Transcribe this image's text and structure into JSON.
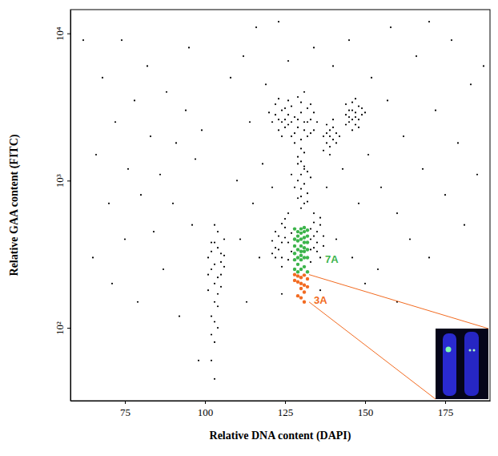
{
  "chart_data": {
    "type": "scatter",
    "x_label": "Relative DNA content (DAPI)",
    "y_label": "Relative GAA content (FITC)",
    "xlim": [
      58,
      189
    ],
    "xticks": [
      75,
      100,
      125,
      150,
      175
    ],
    "ylim": [
      32,
      14500
    ],
    "yticks": [
      {
        "value": 100,
        "label": "10²"
      },
      {
        "value": 1000,
        "label": "10³"
      },
      {
        "value": 10000,
        "label": "10⁴"
      }
    ],
    "log": "y",
    "grid": false,
    "series": [
      {
        "color": "#000000",
        "marker": "dot",
        "x": [
          62,
          65,
          66,
          68,
          70,
          71,
          72,
          74,
          75,
          76,
          78,
          79,
          80,
          82,
          83,
          84,
          86,
          87,
          88,
          90,
          91,
          92,
          94,
          95,
          96,
          97,
          98,
          99,
          108,
          110,
          111,
          112,
          113,
          114,
          115,
          116,
          117,
          118,
          119,
          121,
          123,
          124,
          126,
          127,
          134,
          136,
          138,
          140,
          141,
          143,
          145,
          146,
          148,
          151,
          152,
          154,
          155,
          157,
          158,
          160,
          162,
          164,
          166,
          168,
          170,
          172,
          175,
          177,
          179,
          181,
          183,
          185,
          187,
          150,
          160,
          170,
          101,
          102,
          103,
          104,
          105,
          106,
          103,
          102,
          104,
          103,
          102,
          103,
          104,
          105,
          101,
          106,
          103,
          104,
          102,
          105,
          103,
          104,
          102,
          106,
          101,
          103,
          105,
          102,
          104,
          103,
          122,
          123,
          124,
          125,
          126,
          127,
          125,
          124,
          122,
          121,
          126,
          133,
          134,
          135,
          136,
          134,
          133,
          135,
          137,
          136,
          134,
          133,
          122,
          124,
          127,
          126,
          123,
          135,
          136,
          121,
          137,
          134,
          125,
          133,
          124,
          130,
          131,
          129,
          132,
          130,
          131,
          129,
          130,
          132,
          131,
          130,
          129,
          131,
          130,
          132,
          128,
          133,
          130,
          131,
          129,
          121,
          122,
          123,
          124,
          125,
          126,
          127,
          128,
          129,
          130,
          131,
          132,
          133,
          134,
          122,
          124,
          126,
          128,
          130,
          132,
          134,
          123,
          125,
          127,
          129,
          131,
          133,
          120,
          135,
          128,
          130,
          126,
          124,
          132,
          129,
          127,
          131,
          125,
          123,
          133,
          137,
          138,
          139,
          140,
          141,
          138,
          139,
          140,
          137,
          141,
          139,
          138,
          140,
          142,
          139,
          144,
          145,
          146,
          147,
          148,
          146,
          145,
          147,
          149,
          144,
          148,
          146,
          147,
          145,
          149,
          150,
          146,
          148,
          144,
          147
        ],
        "values": [
          9000,
          300,
          1500,
          5000,
          700,
          200,
          2500,
          9000,
          400,
          1200,
          3500,
          150,
          800,
          6000,
          2000,
          450,
          1100,
          250,
          4000,
          700,
          1800,
          120,
          3000,
          8000,
          500,
          1400,
          60,
          2200,
          5000,
          1000,
          400,
          7000,
          150,
          2500,
          700,
          11000,
          300,
          1300,
          4500,
          900,
          12000,
          170,
          6500,
          1100,
          8000,
          180,
          900,
          6000,
          400,
          1200,
          9000,
          300,
          700,
          1500,
          5000,
          250,
          900,
          3500,
          11000,
          600,
          2000,
          400,
          7000,
          1200,
          300,
          3000,
          800,
          9000,
          1800,
          500,
          4500,
          1100,
          6000,
          200,
          150,
          12000,
          300,
          250,
          200,
          350,
          280,
          400,
          150,
          120,
          100,
          80,
          60,
          45,
          220,
          320,
          180,
          260,
          500,
          450,
          380,
          230,
          270,
          170,
          330,
          310,
          230,
          380,
          190,
          90,
          140,
          110,
          350,
          420,
          300,
          480,
          380,
          330,
          550,
          260,
          450,
          390,
          290,
          400,
          350,
          450,
          300,
          520,
          280,
          380,
          420,
          500,
          600,
          470,
          300,
          510,
          440,
          600,
          340,
          330,
          560,
          320,
          360,
          420,
          410,
          340,
          380,
          650,
          700,
          760,
          820,
          880,
          950,
          1000,
          1100,
          1150,
          1250,
          1350,
          1450,
          1550,
          1650,
          720,
          900,
          1050,
          780,
          1200,
          1300,
          2500,
          2800,
          2200,
          3000,
          2600,
          2400,
          3200,
          2700,
          2300,
          2900,
          2500,
          3100,
          2600,
          2200,
          3300,
          2000,
          3500,
          2100,
          3400,
          2000,
          2900,
          2600,
          3100,
          2500,
          3700,
          2200,
          3300,
          2900,
          2500,
          1800,
          1900,
          2800,
          2500,
          2500,
          2600,
          2000,
          4000,
          2300,
          3600,
          2100,
          2000,
          1800,
          2200,
          1900,
          2100,
          2400,
          1700,
          2300,
          1600,
          1800,
          2000,
          2100,
          2600,
          2000,
          1500,
          2800,
          3000,
          2600,
          2900,
          3200,
          3400,
          2500,
          2400,
          2800,
          3300,
          2600,
          2200,
          3600,
          2700,
          3100,
          2900,
          3000,
          2300,
          2400,
          2700
        ]
      },
      {
        "name": "7A",
        "color": "#3cb44b",
        "marker": "dot",
        "x": [
          128,
          129,
          130,
          131,
          132,
          128,
          129,
          130,
          131,
          132,
          128,
          129,
          130,
          131,
          132,
          128,
          129,
          130,
          131,
          132,
          129,
          130,
          131,
          128,
          130,
          131,
          129,
          132,
          130,
          128,
          131,
          129,
          132,
          130,
          131
        ],
        "values": [
          250,
          270,
          290,
          260,
          300,
          320,
          340,
          360,
          330,
          380,
          400,
          420,
          440,
          410,
          460,
          470,
          390,
          310,
          350,
          240,
          300,
          400,
          450,
          360,
          250,
          300,
          450,
          420,
          470,
          290,
          380,
          240,
          340,
          330,
          480
        ]
      },
      {
        "name": "3A",
        "color": "#f26b21",
        "marker": "dot",
        "x": [
          128,
          129,
          130,
          131,
          132,
          129,
          130,
          131,
          128,
          130,
          131,
          129,
          130,
          132,
          131
        ],
        "values": [
          230,
          225,
          220,
          228,
          215,
          205,
          200,
          195,
          210,
          185,
          175,
          165,
          160,
          190,
          150
        ]
      }
    ]
  }
}
